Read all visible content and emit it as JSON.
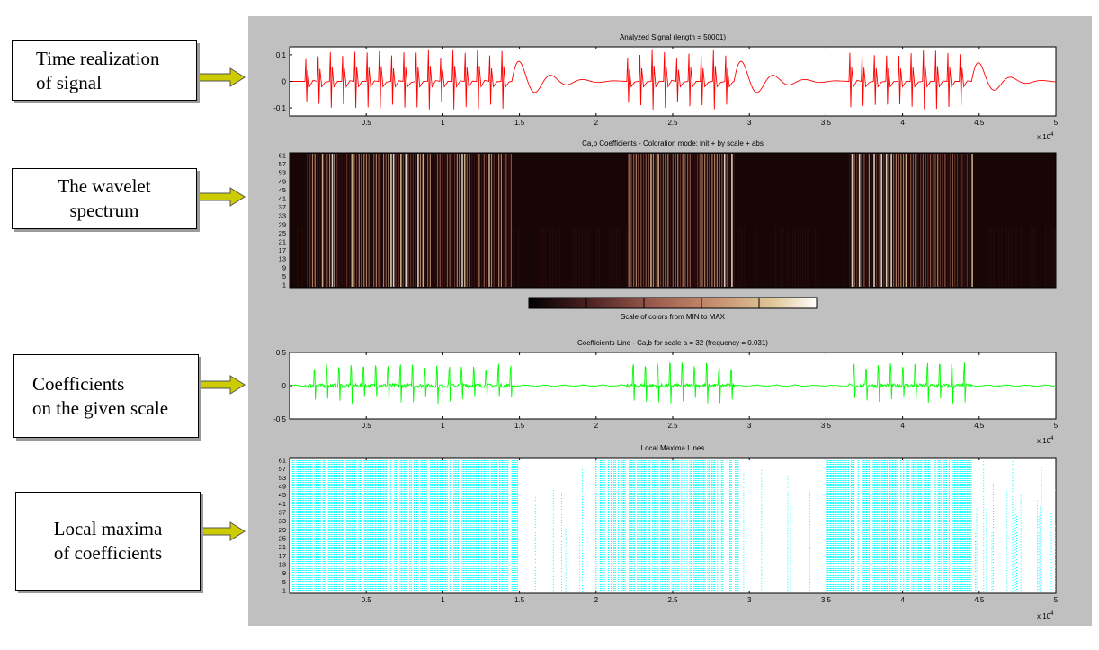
{
  "annotations": [
    {
      "text": "Time realization\nof signal",
      "align": "left"
    },
    {
      "text": "The wavelet\nspectrum",
      "align": "center"
    },
    {
      "text": "Coefficients\n on the given scale",
      "align": "left"
    },
    {
      "text": "Local maxima\nof coefficients",
      "align": "center"
    }
  ],
  "colors": {
    "figure_bg": "#c0c0c0",
    "signal": "#ff0000",
    "coef_line": "#00ff00",
    "maxima": "#00ffff",
    "arrow": "#cccc00"
  },
  "x_ticks": [
    "0.5",
    "1",
    "1.5",
    "2",
    "2.5",
    "3",
    "3.5",
    "4",
    "4.5",
    "5"
  ],
  "x_tick_values": [
    5000,
    10000,
    15000,
    20000,
    25000,
    30000,
    35000,
    40000,
    45000,
    50000
  ],
  "x_exponent": "x 10",
  "x_exponent_power": "4",
  "scale_ticks": [
    "61",
    "57",
    "53",
    "49",
    "45",
    "41",
    "37",
    "33",
    "29",
    "25",
    "21",
    "17",
    "13",
    "9",
    "5",
    "1"
  ],
  "colorbar_label": "Scale of colors from MIN to MAX",
  "chart_data": [
    {
      "type": "line",
      "title": "Analyzed Signal  (length = 50001)",
      "xlim": [
        0,
        50000
      ],
      "ylim": [
        -0.13,
        0.13
      ],
      "yticks": [
        "0.1",
        "0",
        "-0.1"
      ],
      "ytick_values": [
        0.1,
        0,
        -0.1
      ],
      "series": [
        {
          "bursts": [
            [
              1000,
              21500
            ],
            [
              22000,
              36000
            ],
            [
              36500,
              50000
            ]
          ],
          "spike_interval": 800,
          "spike_amplitude": 0.12,
          "impulsive_end": [
            14500,
            29000,
            44500
          ],
          "ringing_amplitude": 0.1
        }
      ]
    },
    {
      "type": "heatmap",
      "title": "Ca,b Coefficients - Coloration mode: init + by scale + abs",
      "xlim": [
        0,
        50000
      ],
      "scales": [
        1,
        61
      ],
      "active_regions": [
        [
          1000,
          14500
        ],
        [
          22000,
          29000
        ],
        [
          36500,
          44500
        ]
      ],
      "colormap": [
        "#000000",
        "#4a2020",
        "#a06050",
        "#c89070",
        "#e0c898",
        "#ffffff"
      ]
    },
    {
      "type": "line",
      "title": "Coefficients Line - Ca,b for scale a = 32  (frequency =   0.031)",
      "xlim": [
        0,
        50000
      ],
      "ylim": [
        -0.5,
        0.5
      ],
      "yticks": [
        "0.5",
        "0",
        "-0.5"
      ],
      "ytick_values": [
        0.5,
        0,
        -0.5
      ],
      "scale": 32,
      "frequency": 0.031,
      "series": [
        {
          "active_regions": [
            [
              1000,
              14500
            ],
            [
              22000,
              29000
            ],
            [
              36500,
              44500
            ]
          ],
          "spike_interval": 800,
          "spike_amplitude": 0.35
        }
      ]
    },
    {
      "type": "scatter",
      "title": "Local Maxima Lines",
      "xlim": [
        0,
        50000
      ],
      "scales": [
        1,
        61
      ],
      "dense_regions": [
        [
          0,
          15000
        ],
        [
          20000,
          29500
        ],
        [
          35000,
          44500
        ]
      ],
      "sparse_regions": [
        [
          15000,
          20000
        ],
        [
          29500,
          35000
        ],
        [
          44500,
          50000
        ]
      ]
    }
  ]
}
